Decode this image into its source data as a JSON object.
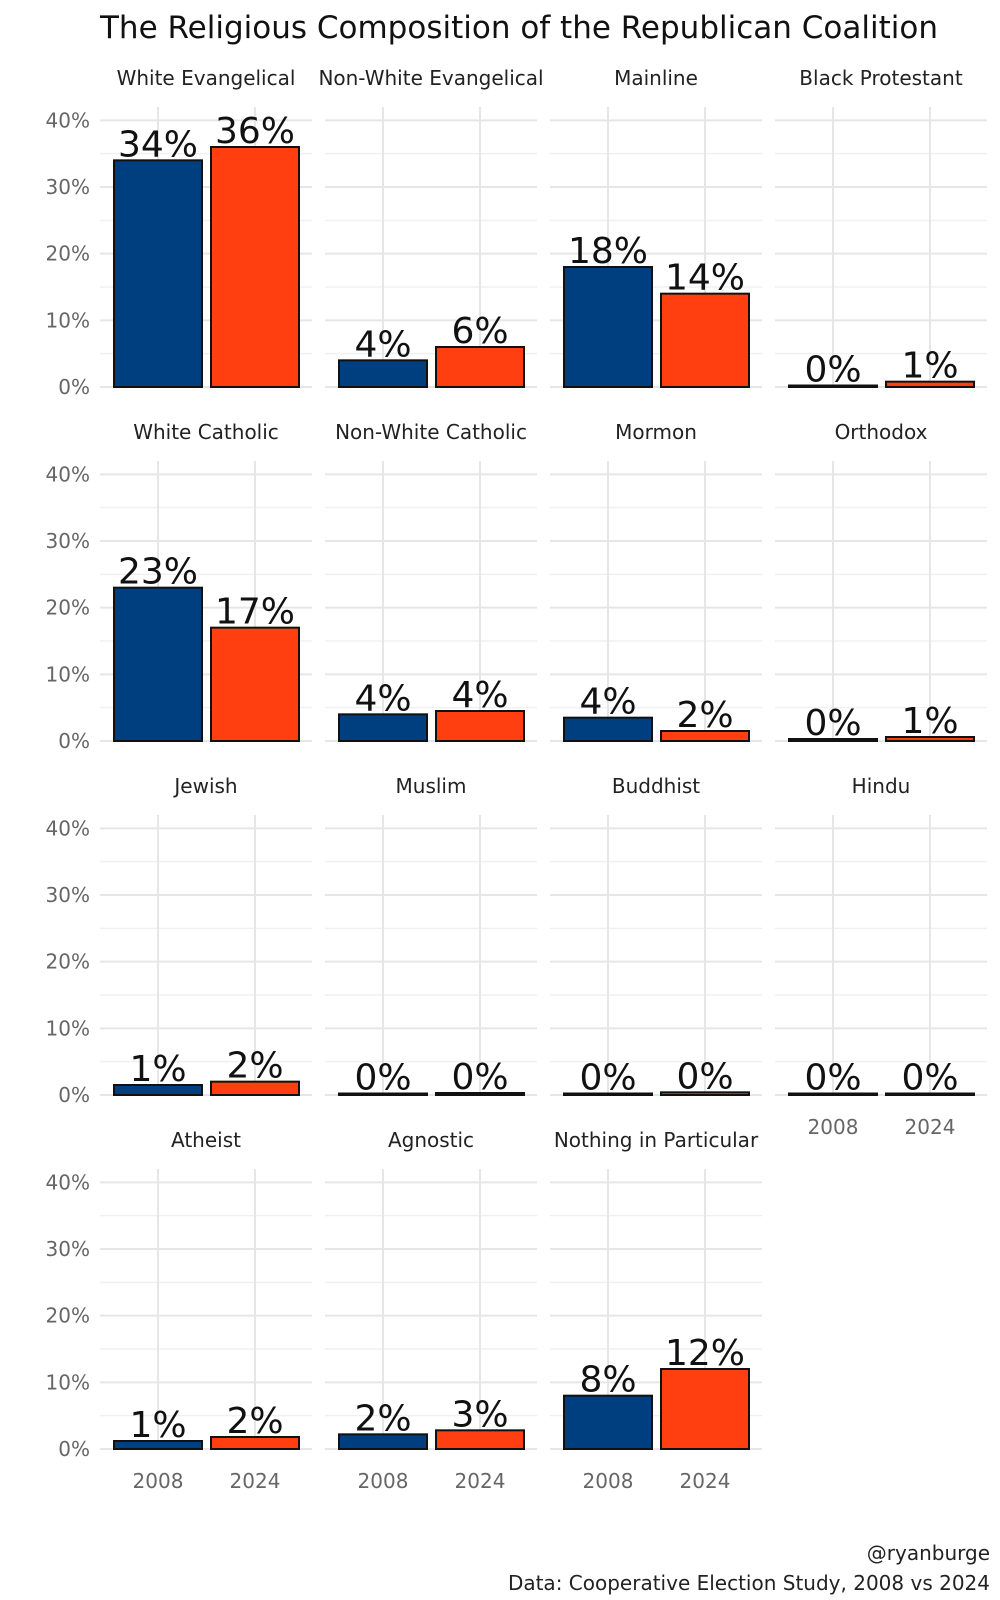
{
  "chart_data": {
    "type": "bar",
    "title": "The Religious Composition of the Republican Coalition",
    "categories": [
      "2008",
      "2024"
    ],
    "y_ticks": [
      "0%",
      "10%",
      "20%",
      "30%",
      "40%"
    ],
    "ylim": [
      0,
      0.42
    ],
    "colors": {
      "2008": "#003f7f",
      "2024": "#ff3f0f"
    },
    "panels": [
      {
        "name": "White Evangelical",
        "values": [
          0.34,
          0.36
        ],
        "labels": [
          "34%",
          "36%"
        ]
      },
      {
        "name": "Non-White Evangelical",
        "values": [
          0.04,
          0.06
        ],
        "labels": [
          "4%",
          "6%"
        ]
      },
      {
        "name": "Mainline",
        "values": [
          0.18,
          0.14
        ],
        "labels": [
          "18%",
          "14%"
        ]
      },
      {
        "name": "Black Protestant",
        "values": [
          0.002,
          0.008
        ],
        "labels": [
          "0%",
          "1%"
        ]
      },
      {
        "name": "White Catholic",
        "values": [
          0.23,
          0.17
        ],
        "labels": [
          "23%",
          "17%"
        ]
      },
      {
        "name": "Non-White Catholic",
        "values": [
          0.04,
          0.045
        ],
        "labels": [
          "4%",
          "4%"
        ]
      },
      {
        "name": "Mormon",
        "values": [
          0.035,
          0.015
        ],
        "labels": [
          "4%",
          "2%"
        ]
      },
      {
        "name": "Orthodox",
        "values": [
          0.003,
          0.006
        ],
        "labels": [
          "0%",
          "1%"
        ]
      },
      {
        "name": "Jewish",
        "values": [
          0.015,
          0.02
        ],
        "labels": [
          "1%",
          "2%"
        ]
      },
      {
        "name": "Muslim",
        "values": [
          0.001,
          0.003
        ],
        "labels": [
          "0%",
          "0%"
        ]
      },
      {
        "name": "Buddhist",
        "values": [
          0.002,
          0.004
        ],
        "labels": [
          "0%",
          "0%"
        ]
      },
      {
        "name": "Hindu",
        "values": [
          0.001,
          0.002
        ],
        "labels": [
          "0%",
          "0%"
        ]
      },
      {
        "name": "Atheist",
        "values": [
          0.012,
          0.018
        ],
        "labels": [
          "1%",
          "2%"
        ]
      },
      {
        "name": "Agnostic",
        "values": [
          0.022,
          0.028
        ],
        "labels": [
          "2%",
          "3%"
        ]
      },
      {
        "name": "Nothing in Particular",
        "values": [
          0.08,
          0.12
        ],
        "labels": [
          "8%",
          "12%"
        ]
      }
    ],
    "caption": [
      "@ryanburge",
      "Data: Cooperative Election Study, 2008 vs 2024"
    ]
  }
}
